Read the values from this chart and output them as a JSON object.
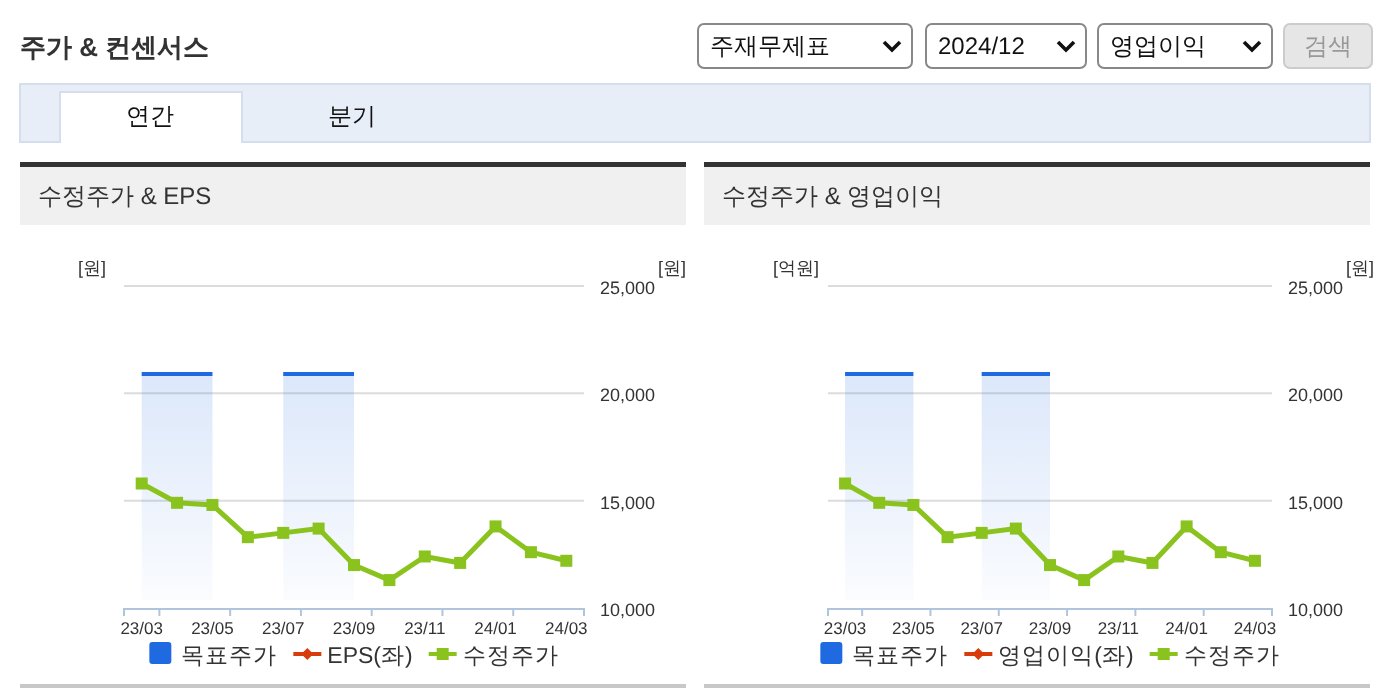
{
  "chart_data": [
    {
      "type": "line",
      "title": "수정주가 & EPS",
      "ylabel": "[원]",
      "y2label": "[원]",
      "categories": [
        "23/03",
        null,
        "23/05",
        null,
        "23/07",
        null,
        "23/09",
        null,
        "23/11",
        null,
        "24/01",
        null,
        "24/03"
      ],
      "y2lim": [
        10000,
        25000
      ],
      "y2ticks": [
        {
          "value": 10000,
          "label": "10,000"
        },
        {
          "value": 15000,
          "label": "15,000"
        },
        {
          "value": 20000,
          "label": "20,000"
        },
        {
          "value": 25000,
          "label": "25,000"
        }
      ],
      "grid": "y",
      "legend": "bottom",
      "annotations": [
        "주가 & 컨센서스",
        "주재무제표",
        "2024/12",
        "영업이익",
        "검색",
        "연간",
        "분기"
      ],
      "series": [
        {
          "name": "목표주가",
          "type": "area",
          "color": "#1f6ae0",
          "axis": "y2",
          "values": [
            20900,
            20900,
            20900,
            null,
            20900,
            20900,
            20900,
            null,
            null,
            null,
            null,
            null,
            null
          ]
        },
        {
          "name": "EPS(좌)",
          "color": "#d83b0c",
          "marker": "diamond",
          "values": [
            null,
            null,
            null,
            null,
            null,
            null,
            null,
            null,
            null,
            null,
            null,
            null,
            null
          ]
        },
        {
          "name": "수정주가",
          "color": "#8ac31e",
          "marker": "square",
          "axis": "y2",
          "values": [
            15800,
            14900,
            14800,
            13300,
            13500,
            13700,
            12000,
            11300,
            12400,
            12100,
            13800,
            12600,
            12200
          ]
        }
      ]
    },
    {
      "type": "line",
      "title": "수정주가 & 영업이익",
      "ylabel": "[억원]",
      "y2label": "[원]",
      "categories": [
        "23/03",
        null,
        "23/05",
        null,
        "23/07",
        null,
        "23/09",
        null,
        "23/11",
        null,
        "24/01",
        null,
        "24/03"
      ],
      "y2lim": [
        10000,
        25000
      ],
      "y2ticks": [
        {
          "value": 10000,
          "label": "10,000"
        },
        {
          "value": 15000,
          "label": "15,000"
        },
        {
          "value": 20000,
          "label": "20,000"
        },
        {
          "value": 25000,
          "label": "25,000"
        }
      ],
      "grid": "y",
      "legend": "bottom",
      "series": [
        {
          "name": "목표주가",
          "type": "area",
          "color": "#1f6ae0",
          "axis": "y2",
          "values": [
            20900,
            20900,
            20900,
            null,
            20900,
            20900,
            20900,
            null,
            null,
            null,
            null,
            null,
            null
          ]
        },
        {
          "name": "영업이익(좌)",
          "color": "#d83b0c",
          "marker": "diamond",
          "values": [
            null,
            null,
            null,
            null,
            null,
            null,
            null,
            null,
            null,
            null,
            null,
            null,
            null
          ]
        },
        {
          "name": "수정주가",
          "color": "#8ac31e",
          "marker": "square",
          "axis": "y2",
          "values": [
            15800,
            14900,
            14800,
            13300,
            13500,
            13700,
            12000,
            11300,
            12400,
            12100,
            13800,
            12600,
            12200
          ]
        }
      ]
    }
  ]
}
